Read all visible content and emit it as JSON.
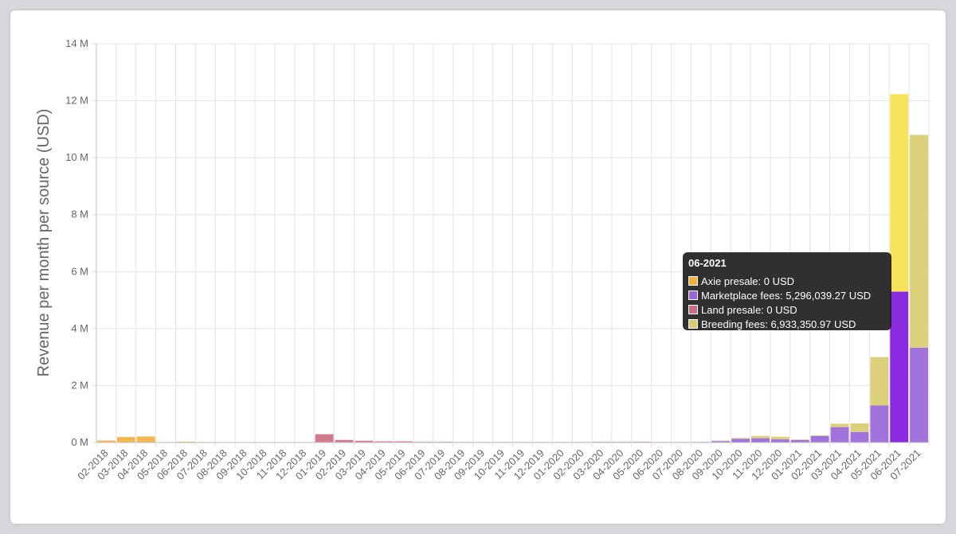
{
  "chart_data": {
    "type": "bar",
    "stacked": true,
    "ylabel": "Revenue per month per source (USD)",
    "ylim": [
      0,
      14000000
    ],
    "yticks": [
      {
        "value": 0,
        "label": "0 M"
      },
      {
        "value": 2000000,
        "label": "2 M"
      },
      {
        "value": 4000000,
        "label": "4 M"
      },
      {
        "value": 6000000,
        "label": "6 M"
      },
      {
        "value": 8000000,
        "label": "8 M"
      },
      {
        "value": 10000000,
        "label": "10 M"
      },
      {
        "value": 12000000,
        "label": "12 M"
      },
      {
        "value": 14000000,
        "label": "14 M"
      }
    ],
    "grid": true,
    "categories": [
      "02-2018",
      "03-2018",
      "04-2018",
      "05-2018",
      "06-2018",
      "07-2018",
      "08-2018",
      "09-2018",
      "10-2018",
      "11-2018",
      "12-2018",
      "01-2019",
      "02-2019",
      "03-2019",
      "04-2019",
      "05-2019",
      "06-2019",
      "07-2019",
      "08-2019",
      "09-2019",
      "10-2019",
      "11-2019",
      "12-2019",
      "01-2020",
      "02-2020",
      "03-2020",
      "04-2020",
      "05-2020",
      "06-2020",
      "07-2020",
      "08-2020",
      "09-2020",
      "10-2020",
      "11-2020",
      "12-2020",
      "01-2021",
      "02-2021",
      "03-2021",
      "04-2021",
      "05-2021",
      "06-2021",
      "07-2021"
    ],
    "series": [
      {
        "name": "Axie presale",
        "color": "#f5b041",
        "values": [
          70000,
          190000,
          210000,
          10000,
          30000,
          5000,
          0,
          0,
          0,
          0,
          0,
          0,
          0,
          0,
          0,
          0,
          0,
          0,
          0,
          0,
          0,
          0,
          0,
          0,
          0,
          0,
          0,
          0,
          0,
          0,
          0,
          0,
          0,
          0,
          0,
          0,
          0,
          0,
          0,
          0,
          0,
          0
        ]
      },
      {
        "name": "Marketplace fees",
        "color": "#9966d9",
        "values": [
          0,
          0,
          0,
          0,
          0,
          0,
          0,
          0,
          0,
          0,
          0,
          0,
          10000,
          10000,
          10000,
          10000,
          5000,
          5000,
          5000,
          5000,
          5000,
          5000,
          5000,
          5000,
          5000,
          5000,
          5000,
          5000,
          10000,
          10000,
          20000,
          50000,
          130000,
          150000,
          110000,
          90000,
          230000,
          540000,
          370000,
          1300000,
          5296039.27,
          3330000
        ]
      },
      {
        "name": "Land presale",
        "color": "#cc6f83",
        "values": [
          0,
          0,
          0,
          0,
          0,
          0,
          0,
          0,
          0,
          0,
          0,
          290000,
          80000,
          50000,
          30000,
          30000,
          10000,
          5000,
          0,
          0,
          0,
          0,
          0,
          0,
          0,
          5000,
          10000,
          20000,
          0,
          0,
          0,
          0,
          0,
          0,
          0,
          0,
          0,
          0,
          0,
          0,
          0,
          0
        ]
      },
      {
        "name": "Breeding fees",
        "color": "#d9cc70",
        "values": [
          0,
          0,
          0,
          0,
          0,
          0,
          0,
          0,
          0,
          0,
          0,
          0,
          0,
          0,
          0,
          0,
          0,
          0,
          0,
          0,
          0,
          0,
          0,
          0,
          0,
          0,
          0,
          0,
          0,
          0,
          0,
          10000,
          30000,
          80000,
          90000,
          10000,
          20000,
          120000,
          300000,
          1700000,
          6933350.97,
          7470000
        ]
      }
    ],
    "highlight": {
      "index": 40,
      "colors": [
        "#f5b041",
        "#8a2be2",
        "#cc6f83",
        "#f7e35a"
      ]
    }
  },
  "tooltip": {
    "title": "06-2021",
    "rows": [
      {
        "text": "Axie presale: 0 USD",
        "color": "#f5b041"
      },
      {
        "text": "Marketplace fees: 5,296,039.27 USD",
        "color": "#9966d9"
      },
      {
        "text": "Land presale: 0 USD",
        "color": "#cc6f83"
      },
      {
        "text": "Breeding fees: 6,933,350.97 USD",
        "color": "#d9cc70"
      }
    ]
  }
}
